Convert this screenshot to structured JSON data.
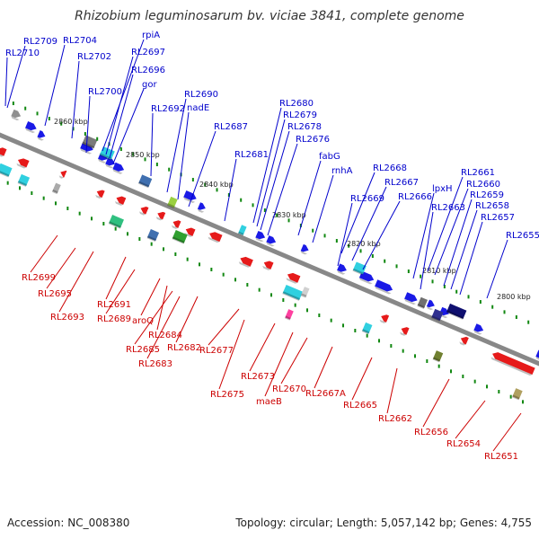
{
  "title": "Rhizobium leguminosarum bv. viciae 3841, complete genome",
  "footer": {
    "accession": "Accession: NC_008380",
    "summary": "Topology: circular; Length: 5,057,142 bp; Genes: 4,755"
  },
  "colors": {
    "forward_label": "#0000cc",
    "reverse_label": "#cc0000",
    "backbone": "#888888",
    "tick": "#118811",
    "forward_gene": "#1a1ae6",
    "reverse_gene": "#e61a1a",
    "rna_cyan": "#30d0e0",
    "other_gray": "#909090"
  },
  "kbp_labels": [
    "2860 kbp",
    "2850 kbp",
    "2840 kbp",
    "2830 kbp",
    "2820 kbp",
    "2810 kbp",
    "2800 kbp"
  ],
  "forward_labels": [
    "RL2709",
    "RL2710",
    "RL2704",
    "RL2702",
    "rpiA",
    "RL2697",
    "RL2696",
    "gor",
    "RL2700",
    "RL2692",
    "RL2690",
    "nadE",
    "RL2687",
    "RL2681",
    "RL2680",
    "RL2679",
    "RL2678",
    "RL2676",
    "fabG",
    "rnhA",
    "RL2668",
    "RL2667",
    "RL2669",
    "RL2666",
    "RL2661",
    "RL2660",
    "lpxH",
    "RL2659",
    "RL2663",
    "RL2658",
    "RL2657",
    "RL2655"
  ],
  "reverse_labels": [
    "RL2699",
    "RL2695",
    "RL2693",
    "RL2691",
    "RL2689",
    "aroQ",
    "RL2684",
    "RL2685",
    "RL2683",
    "RL2682",
    "RL2677",
    "RL2675",
    "RL2673",
    "maeB",
    "RL2670",
    "RL2667A",
    "RL2665",
    "RL2662",
    "RL2656",
    "RL2654",
    "RL2651"
  ]
}
